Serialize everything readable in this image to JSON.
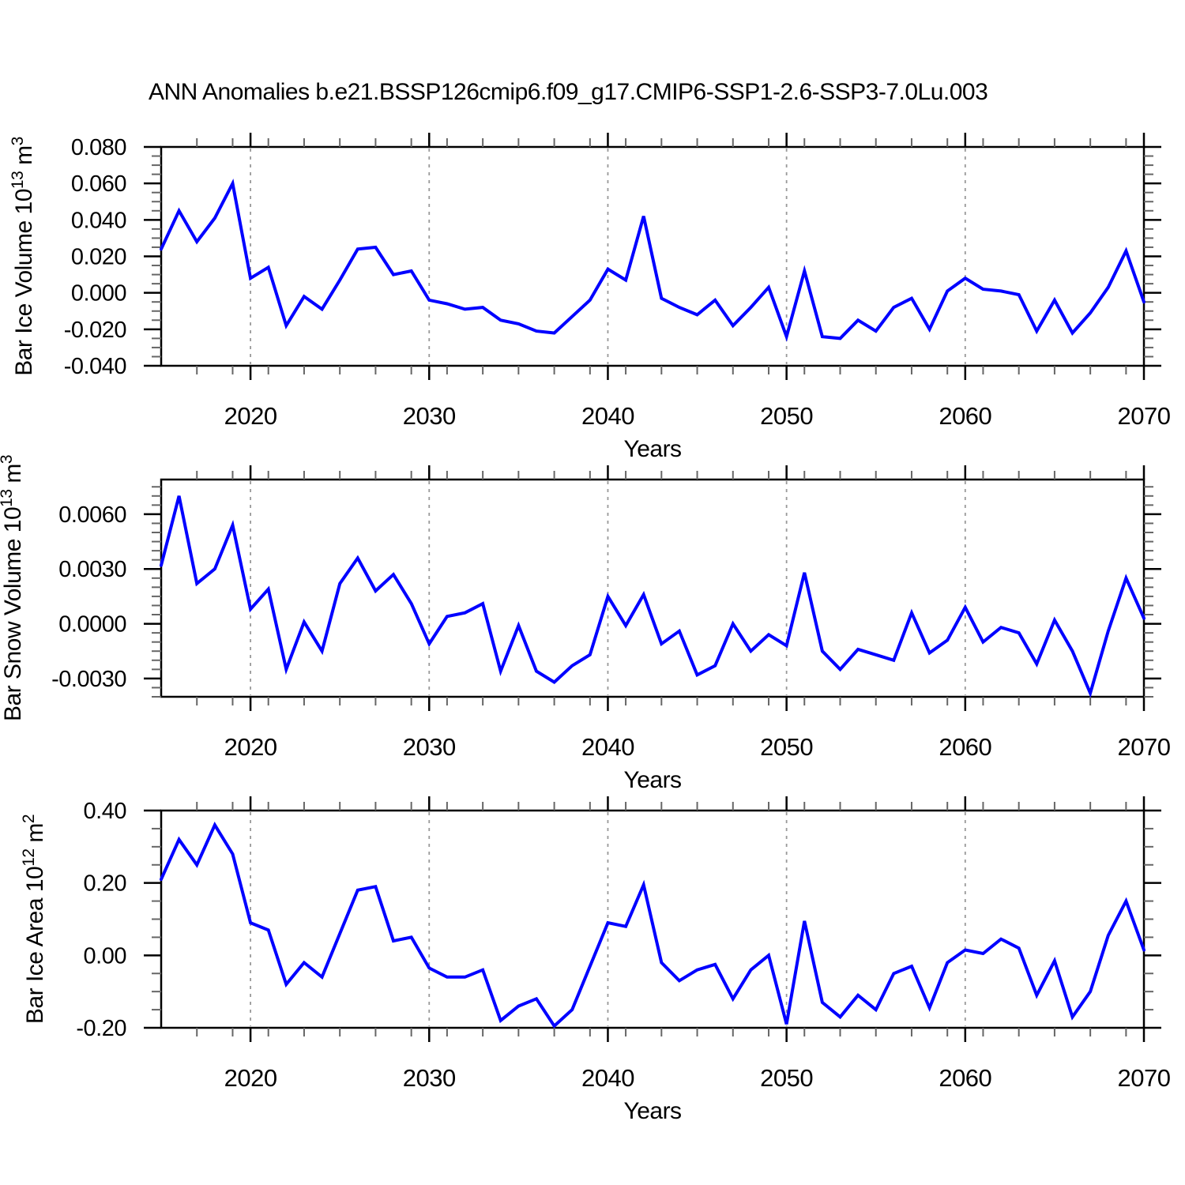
{
  "title": "ANN Anomalies b.e21.BSSP126cmip6.f09_g17.CMIP6-SSP1-2.6-SSP3-7.0Lu.003",
  "colors": {
    "line": "#0000ff",
    "frame": "#000000",
    "grid": "#999999",
    "major_tick": "#000000",
    "minor_tick": "#666666"
  },
  "chart_data": {
    "type": "line",
    "x_label": "Years",
    "x_range": [
      2015,
      2070
    ],
    "x_ticks": [
      2020,
      2030,
      2040,
      2050,
      2060,
      2070
    ],
    "x_minor_step": 2,
    "grid_years": [
      2020,
      2030,
      2040,
      2050,
      2060
    ],
    "legend": "none",
    "grid": "vertical-dashed",
    "years": [
      2015,
      2016,
      2017,
      2018,
      2019,
      2020,
      2021,
      2022,
      2023,
      2024,
      2025,
      2026,
      2027,
      2028,
      2029,
      2030,
      2031,
      2032,
      2033,
      2034,
      2035,
      2036,
      2037,
      2038,
      2039,
      2040,
      2041,
      2042,
      2043,
      2044,
      2045,
      2046,
      2047,
      2048,
      2049,
      2050,
      2051,
      2052,
      2053,
      2054,
      2055,
      2056,
      2057,
      2058,
      2059,
      2060,
      2061,
      2062,
      2063,
      2064,
      2065,
      2066,
      2067,
      2068,
      2069,
      2070
    ],
    "panels": [
      {
        "name": "bar-ice-volume",
        "ylabel": "Bar Ice Volume 10^13 m^3",
        "ylim": [
          -0.04,
          0.08
        ],
        "yticks": [
          {
            "v": 0.08,
            "label": "0.080"
          },
          {
            "v": 0.06,
            "label": "0.060"
          },
          {
            "v": 0.04,
            "label": "0.040"
          },
          {
            "v": 0.02,
            "label": "0.020"
          },
          {
            "v": 0.0,
            "label": "0.000"
          },
          {
            "v": -0.02,
            "label": "-0.020"
          },
          {
            "v": -0.04,
            "label": "-0.040"
          }
        ],
        "y_minor_step": 0.005,
        "values": [
          0.024,
          0.045,
          0.028,
          0.041,
          0.06,
          0.008,
          0.014,
          -0.018,
          -0.002,
          -0.009,
          0.007,
          0.024,
          0.025,
          0.01,
          0.012,
          -0.004,
          -0.006,
          -0.009,
          -0.008,
          -0.015,
          -0.017,
          -0.021,
          -0.022,
          -0.013,
          -0.004,
          0.013,
          0.007,
          0.042,
          -0.003,
          -0.008,
          -0.012,
          -0.004,
          -0.018,
          -0.008,
          0.003,
          -0.024,
          0.012,
          -0.024,
          -0.025,
          -0.015,
          -0.021,
          -0.008,
          -0.003,
          -0.02,
          0.001,
          0.008,
          0.002,
          0.001,
          -0.001,
          -0.021,
          -0.004,
          -0.022,
          -0.011,
          0.003,
          0.023,
          -0.005
        ]
      },
      {
        "name": "bar-snow-volume",
        "ylabel": "Bar Snow Volume 10^13 m^3",
        "ylim": [
          -0.004,
          0.0079
        ],
        "yticks": [
          {
            "v": 0.006,
            "label": "0.0060"
          },
          {
            "v": 0.003,
            "label": "0.0030"
          },
          {
            "v": 0.0,
            "label": "0.0000"
          },
          {
            "v": -0.003,
            "label": "-0.0030"
          }
        ],
        "y_minor_step": 0.0005,
        "values": [
          0.0032,
          0.007,
          0.0022,
          0.003,
          0.0054,
          0.0008,
          0.0019,
          -0.0025,
          0.0001,
          -0.0015,
          0.0022,
          0.0036,
          0.0018,
          0.0027,
          0.0011,
          -0.0011,
          0.0004,
          0.0006,
          0.0011,
          -0.0026,
          -0.0001,
          -0.0026,
          -0.0032,
          -0.0023,
          -0.0017,
          0.0015,
          -0.0001,
          0.0016,
          -0.0011,
          -0.0004,
          -0.0028,
          -0.0023,
          0.0,
          -0.0015,
          -0.0006,
          -0.0012,
          0.0028,
          -0.0015,
          -0.0025,
          -0.0014,
          -0.0017,
          -0.002,
          0.0006,
          -0.0016,
          -0.0009,
          0.0009,
          -0.001,
          -0.0002,
          -0.0005,
          -0.0022,
          0.0002,
          -0.0015,
          -0.0038,
          -0.0004,
          0.0025,
          0.0003
        ]
      },
      {
        "name": "bar-ice-area",
        "ylabel": "Bar Ice Area 10^12 m^2",
        "ylim": [
          -0.2,
          0.4
        ],
        "yticks": [
          {
            "v": 0.4,
            "label": "0.40"
          },
          {
            "v": 0.2,
            "label": "0.20"
          },
          {
            "v": 0.0,
            "label": "0.00"
          },
          {
            "v": -0.2,
            "label": "-0.20"
          }
        ],
        "y_minor_step": 0.05,
        "values": [
          0.21,
          0.32,
          0.25,
          0.36,
          0.28,
          0.09,
          0.07,
          -0.08,
          -0.02,
          -0.06,
          0.06,
          0.18,
          0.19,
          0.04,
          0.05,
          -0.035,
          -0.06,
          -0.06,
          -0.04,
          -0.18,
          -0.14,
          -0.12,
          -0.195,
          -0.15,
          -0.03,
          0.09,
          0.08,
          0.195,
          -0.02,
          -0.07,
          -0.04,
          -0.025,
          -0.12,
          -0.04,
          0.0,
          -0.19,
          0.095,
          -0.13,
          -0.17,
          -0.11,
          -0.15,
          -0.05,
          -0.03,
          -0.145,
          -0.02,
          0.015,
          0.005,
          0.045,
          0.02,
          -0.11,
          -0.015,
          -0.17,
          -0.1,
          0.055,
          0.15,
          0.015
        ]
      }
    ]
  }
}
